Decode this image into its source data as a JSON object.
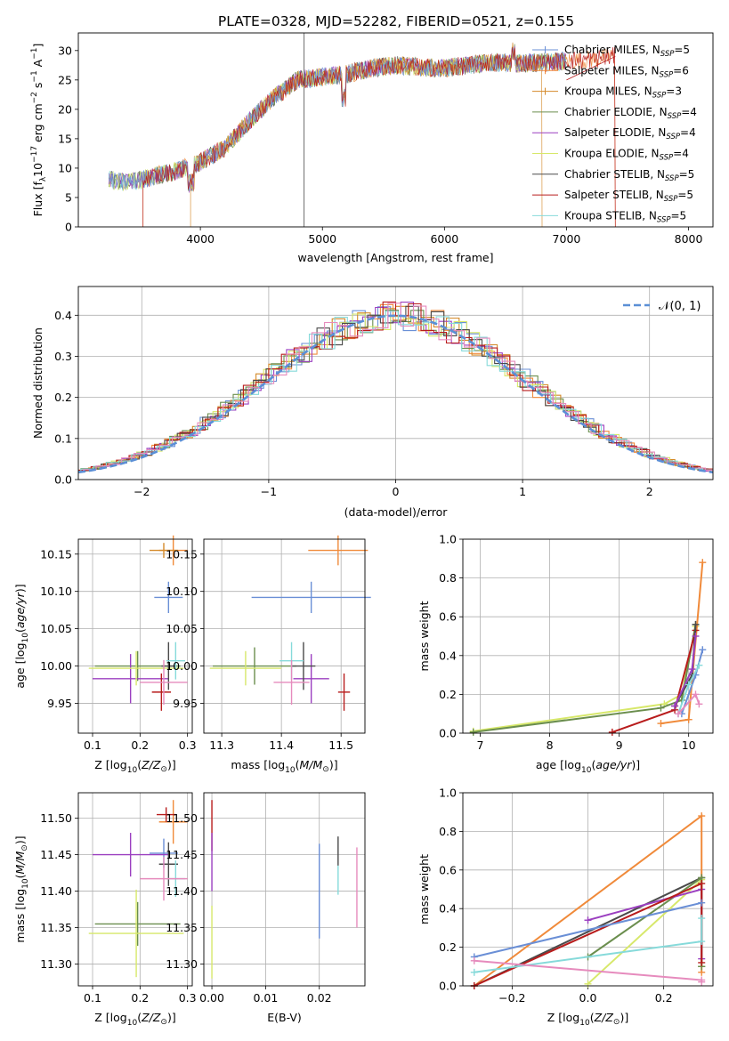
{
  "title": "PLATE=0328, MJD=52282, FIBERID=0521, z=0.155",
  "colors": {
    "Chabrier MILES": "#6a8fd6",
    "Salpeter MILES": "#f08a3a",
    "Kroupa MILES": "#d48a2a",
    "Chabrier ELODIE": "#6b8e4e",
    "Salpeter ELODIE": "#9b3fc0",
    "Kroupa ELODIE": "#d7e86a",
    "Chabrier STELIB": "#4a4a4a",
    "Salpeter STELIB": "#b81c1c",
    "Kroupa STELIB": "#86dada",
    "Extra": "#e68bbd",
    "Normal": "#5b8fd6"
  },
  "chart_data": [
    {
      "type": "line",
      "panel": "spectrum",
      "title": "PLATE=0328, MJD=52282, FIBERID=0521, z=0.155",
      "xlabel": "wavelength [Angstrom, rest frame]",
      "ylabel": "Flux [f_λ 10^-17 erg cm^-2 s^-1 A^-1]",
      "xlim": [
        3000,
        8200
      ],
      "ylim": [
        0,
        33
      ],
      "xticks": [
        "4000",
        "5000",
        "6000",
        "7000",
        "8000"
      ],
      "yticks": [
        "0",
        "5",
        "10",
        "15",
        "20",
        "25",
        "30"
      ],
      "grid": false,
      "legend_position": "right",
      "legend": [
        {
          "label": "Chabrier MILES, N",
          "sub": "SSP",
          "eq": "=5"
        },
        {
          "label": "Salpeter MILES, N",
          "sub": "SSP",
          "eq": "=6"
        },
        {
          "label": "Kroupa MILES, N",
          "sub": "SSP",
          "eq": "=3"
        },
        {
          "label": "Chabrier ELODIE, N",
          "sub": "SSP",
          "eq": "=4"
        },
        {
          "label": "Salpeter ELODIE, N",
          "sub": "SSP",
          "eq": "=4"
        },
        {
          "label": "Kroupa ELODIE, N",
          "sub": "SSP",
          "eq": "=4"
        },
        {
          "label": "Chabrier STELIB, N",
          "sub": "SSP",
          "eq": "=5"
        },
        {
          "label": "Salpeter STELIB, N",
          "sub": "SSP",
          "eq": "=5"
        },
        {
          "label": "Kroupa STELIB, N",
          "sub": "SSP",
          "eq": "=5"
        }
      ],
      "spectrum_envelope": {
        "x": [
          3250,
          3400,
          3600,
          3800,
          4000,
          4200,
          4400,
          4600,
          4800,
          5000,
          5200,
          5400,
          5600,
          5800,
          6000,
          6200,
          6400,
          6600,
          6800,
          7000,
          7200,
          7400
        ],
        "y": [
          8,
          7.5,
          8.5,
          9.5,
          11,
          13.5,
          18,
          22,
          25,
          25.5,
          26,
          27,
          27.5,
          27.2,
          27,
          27.5,
          28,
          27.8,
          28,
          28.2,
          28.5,
          29
        ]
      }
    },
    {
      "type": "bar",
      "panel": "residual_histogram",
      "xlabel": "(data-model)/error",
      "ylabel": "Normed distribution",
      "xlim": [
        -2.5,
        2.5
      ],
      "ylim": [
        0,
        0.47
      ],
      "xticks": [
        "−2",
        "−1",
        "0",
        "1",
        "2"
      ],
      "yticks": [
        "0.0",
        "0.1",
        "0.2",
        "0.3",
        "0.4"
      ],
      "grid": true,
      "legend_position": "top-right",
      "legend": [
        {
          "label": "N(0,1)"
        }
      ]
    },
    {
      "type": "scatter",
      "panel": "age_vs_Z",
      "xlabel": "Z [log10(Z/Z⊙)]",
      "ylabel": "age  [log10(age/yr)]",
      "xlim": [
        0.07,
        0.31
      ],
      "ylim": [
        9.91,
        10.17
      ],
      "xticks": [
        "0.1",
        "0.2",
        "0.3"
      ],
      "yticks": [
        "9.95",
        "10.00",
        "10.05",
        "10.10",
        "10.15"
      ],
      "grid": true,
      "points": [
        {
          "model": "Chabrier MILES",
          "x": 0.26,
          "y": 10.092,
          "xerr": 0.03,
          "yerr": 0.021
        },
        {
          "model": "Salpeter MILES",
          "x": 0.27,
          "y": 10.155,
          "xerr": 0.03,
          "yerr": 0.02
        },
        {
          "model": "Kroupa MILES",
          "x": 0.25,
          "y": 10.155,
          "xerr": 0.03,
          "yerr": 0.01
        },
        {
          "model": "Chabrier ELODIE",
          "x": 0.195,
          "y": 10.0,
          "xerr": 0.09,
          "yerr": 0.02
        },
        {
          "model": "Salpeter ELODIE",
          "x": 0.18,
          "y": 9.983,
          "xerr": 0.08,
          "yerr": 0.033
        },
        {
          "model": "Kroupa ELODIE",
          "x": 0.192,
          "y": 9.997,
          "xerr": 0.1,
          "yerr": 0.023
        },
        {
          "model": "Chabrier STELIB",
          "x": 0.26,
          "y": 10.0,
          "xerr": 0.015,
          "yerr": 0.032
        },
        {
          "model": "Salpeter STELIB",
          "x": 0.245,
          "y": 9.965,
          "xerr": 0.02,
          "yerr": 0.025
        },
        {
          "model": "Kroupa STELIB",
          "x": 0.275,
          "y": 10.007,
          "xerr": 0.02,
          "yerr": 0.025
        },
        {
          "model": "Extra",
          "x": 0.25,
          "y": 9.978,
          "xerr": 0.05,
          "yerr": 0.03
        }
      ]
    },
    {
      "type": "scatter",
      "panel": "age_vs_mass",
      "xlabel": "mass [log10(M/M⊙)]",
      "ylabel": "",
      "xlim": [
        11.27,
        11.54
      ],
      "ylim": [
        9.91,
        10.17
      ],
      "xticks": [
        "11.3",
        "11.4",
        "11.5"
      ],
      "yticks": [
        "9.95",
        "10.00",
        "10.05",
        "10.10",
        "10.15"
      ],
      "grid": true,
      "points": [
        {
          "model": "Chabrier MILES",
          "x": 11.45,
          "y": 10.092,
          "xerr": 0.1,
          "yerr": 0.021
        },
        {
          "model": "Salpeter MILES",
          "x": 11.495,
          "y": 10.155,
          "xerr": 0.05,
          "yerr": 0.02
        },
        {
          "model": "Chabrier ELODIE",
          "x": 11.355,
          "y": 10.0,
          "xerr": 0.07,
          "yerr": 0.025
        },
        {
          "model": "Salpeter ELODIE",
          "x": 11.45,
          "y": 9.983,
          "xerr": 0.03,
          "yerr": 0.033
        },
        {
          "model": "Kroupa ELODIE",
          "x": 11.34,
          "y": 9.997,
          "xerr": 0.06,
          "yerr": 0.023
        },
        {
          "model": "Chabrier STELIB",
          "x": 11.437,
          "y": 10.0,
          "xerr": 0.02,
          "yerr": 0.032
        },
        {
          "model": "Salpeter STELIB",
          "x": 11.505,
          "y": 9.965,
          "xerr": 0.01,
          "yerr": 0.025
        },
        {
          "model": "Kroupa STELIB",
          "x": 11.417,
          "y": 10.007,
          "xerr": 0.02,
          "yerr": 0.025
        },
        {
          "model": "Extra",
          "x": 11.417,
          "y": 9.978,
          "xerr": 0.03,
          "yerr": 0.03
        }
      ]
    },
    {
      "type": "line",
      "panel": "mass_weight_vs_age",
      "xlabel": "age  [log10(age/yr)]",
      "ylabel": "mass weight",
      "xlim": [
        6.75,
        10.35
      ],
      "ylim": [
        0.0,
        1.0
      ],
      "xticks": [
        "7",
        "8",
        "9",
        "10"
      ],
      "yticks": [
        "0.0",
        "0.2",
        "0.4",
        "0.6",
        "0.8",
        "1.0"
      ],
      "grid": true,
      "series": [
        {
          "model": "Kroupa ELODIE",
          "x": [
            6.9,
            9.65,
            9.9,
            10.1
          ],
          "y": [
            0.01,
            0.15,
            0.2,
            0.55
          ]
        },
        {
          "model": "Chabrier ELODIE",
          "x": [
            6.9,
            9.6,
            9.9,
            10.1
          ],
          "y": [
            0.005,
            0.13,
            0.17,
            0.56
          ]
        },
        {
          "model": "Salpeter MILES",
          "x": [
            9.6,
            10.0,
            10.2
          ],
          "y": [
            0.05,
            0.07,
            0.88
          ]
        },
        {
          "model": "Salpeter STELIB",
          "x": [
            8.9,
            9.8,
            10.1
          ],
          "y": [
            0.005,
            0.12,
            0.53
          ]
        },
        {
          "model": "Chabrier STELIB",
          "x": [
            9.8,
            10.05,
            10.1
          ],
          "y": [
            0.14,
            0.3,
            0.56
          ]
        },
        {
          "model": "Salpeter ELODIE",
          "x": [
            9.8,
            10.05,
            10.1
          ],
          "y": [
            0.14,
            0.33,
            0.5
          ]
        },
        {
          "model": "Chabrier MILES",
          "x": [
            9.9,
            10.1,
            10.2
          ],
          "y": [
            0.1,
            0.3,
            0.43
          ]
        },
        {
          "model": "Kroupa STELIB",
          "x": [
            9.85,
            10.0,
            10.15
          ],
          "y": [
            0.1,
            0.25,
            0.35
          ]
        },
        {
          "model": "Extra",
          "x": [
            9.85,
            10.1,
            10.15
          ],
          "y": [
            0.1,
            0.2,
            0.15
          ]
        }
      ]
    },
    {
      "type": "scatter",
      "panel": "mass_vs_Z",
      "xlabel": "Z [log10(Z/Z⊙)]",
      "ylabel": "mass [log10(M/M⊙)]",
      "xlim": [
        0.07,
        0.31
      ],
      "ylim": [
        11.27,
        11.535
      ],
      "xticks": [
        "0.1",
        "0.2",
        "0.3"
      ],
      "yticks": [
        "11.30",
        "11.35",
        "11.40",
        "11.45",
        "11.50"
      ],
      "grid": true,
      "points": [
        {
          "model": "Chabrier MILES",
          "x": 0.25,
          "y": 11.452,
          "xerr": 0.03,
          "yerr": 0.02
        },
        {
          "model": "Salpeter MILES",
          "x": 0.27,
          "y": 11.495,
          "xerr": 0.03,
          "yerr": 0.03
        },
        {
          "model": "Chabrier ELODIE",
          "x": 0.195,
          "y": 11.355,
          "xerr": 0.09,
          "yerr": 0.03
        },
        {
          "model": "Salpeter ELODIE",
          "x": 0.18,
          "y": 11.45,
          "xerr": 0.08,
          "yerr": 0.03
        },
        {
          "model": "Kroupa ELODIE",
          "x": 0.192,
          "y": 11.342,
          "xerr": 0.1,
          "yerr": 0.06
        },
        {
          "model": "Chabrier STELIB",
          "x": 0.26,
          "y": 11.437,
          "xerr": 0.02,
          "yerr": 0.03
        },
        {
          "model": "Salpeter STELIB",
          "x": 0.255,
          "y": 11.505,
          "xerr": 0.02,
          "yerr": 0.01
        },
        {
          "model": "Kroupa STELIB",
          "x": 0.275,
          "y": 11.417,
          "xerr": 0.02,
          "yerr": 0.025
        },
        {
          "model": "Extra",
          "x": 0.25,
          "y": 11.417,
          "xerr": 0.05,
          "yerr": 0.03
        }
      ]
    },
    {
      "type": "scatter",
      "panel": "mass_vs_EBV",
      "xlabel": "E(B-V)",
      "ylabel": "",
      "xlim": [
        -0.0015,
        0.0285
      ],
      "ylim": [
        11.27,
        11.535
      ],
      "xticks": [
        "0.00",
        "0.01",
        "0.02"
      ],
      "yticks": [
        "11.30",
        "11.35",
        "11.40",
        "11.45",
        "11.50"
      ],
      "grid": true,
      "points": [
        {
          "model": "Salpeter STELIB",
          "x": 0.0,
          "y": 11.49,
          "xerr": 0,
          "yerr": 0.035
        },
        {
          "model": "Salpeter ELODIE",
          "x": 0.0,
          "y": 11.44,
          "xerr": 0,
          "yerr": 0.04
        },
        {
          "model": "Kroupa ELODIE",
          "x": 0.0,
          "y": 11.33,
          "xerr": 0,
          "yerr": 0.05
        },
        {
          "model": "Chabrier MILES",
          "x": 0.02,
          "y": 11.4,
          "xerr": 0,
          "yerr": 0.065
        },
        {
          "model": "Chabrier STELIB",
          "x": 0.0235,
          "y": 11.455,
          "xerr": 0,
          "yerr": 0.02
        },
        {
          "model": "Kroupa STELIB",
          "x": 0.0235,
          "y": 11.415,
          "xerr": 0,
          "yerr": 0.02
        },
        {
          "model": "Extra",
          "x": 0.027,
          "y": 11.405,
          "xerr": 0,
          "yerr": 0.055
        }
      ]
    },
    {
      "type": "line",
      "panel": "mass_weight_vs_Z",
      "xlabel": "Z [log10(Z/Z⊙)]",
      "ylabel": "mass weight",
      "xlim": [
        -0.33,
        0.33
      ],
      "ylim": [
        0.0,
        1.0
      ],
      "xticks": [
        "−0.2",
        "0.0",
        "0.2"
      ],
      "yticks": [
        "0.0",
        "0.2",
        "0.4",
        "0.6",
        "0.8",
        "1.0"
      ],
      "grid": true,
      "series": [
        {
          "model": "Salpeter MILES",
          "x": [
            -0.3,
            0.3,
            0.3
          ],
          "y": [
            0.0,
            0.88,
            0.07
          ]
        },
        {
          "model": "Chabrier STELIB",
          "x": [
            -0.3,
            0.3,
            0.3
          ],
          "y": [
            0.0,
            0.56,
            0.1
          ]
        },
        {
          "model": "Kroupa ELODIE",
          "x": [
            0.0,
            0.3,
            0.3
          ],
          "y": [
            0.01,
            0.55,
            0.1
          ]
        },
        {
          "model": "Chabrier ELODIE",
          "x": [
            0.0,
            0.3,
            0.3
          ],
          "y": [
            0.15,
            0.56,
            0.1
          ]
        },
        {
          "model": "Salpeter ELODIE",
          "x": [
            0.0,
            0.3,
            0.3
          ],
          "y": [
            0.34,
            0.5,
            0.14
          ]
        },
        {
          "model": "Salpeter STELIB",
          "x": [
            -0.3,
            0.3,
            0.3
          ],
          "y": [
            0.0,
            0.53,
            0.12
          ]
        },
        {
          "model": "Chabrier MILES",
          "x": [
            -0.3,
            0.3
          ],
          "y": [
            0.15,
            0.43
          ]
        },
        {
          "model": "Kroupa STELIB",
          "x": [
            -0.3,
            0.3,
            0.3
          ],
          "y": [
            0.07,
            0.23,
            0.35
          ]
        },
        {
          "model": "Extra",
          "x": [
            -0.3,
            0.3,
            0.3
          ],
          "y": [
            0.13,
            0.03,
            0.02
          ]
        }
      ]
    }
  ]
}
